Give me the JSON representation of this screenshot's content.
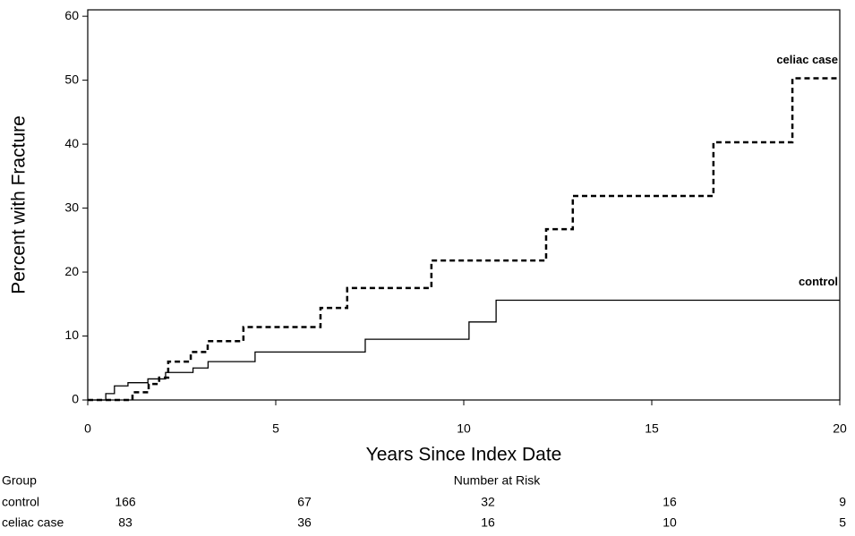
{
  "chart_data": {
    "type": "step",
    "x_label": "Years Since Index Date",
    "y_label": "Percent with Fracture",
    "xlim": [
      0,
      20
    ],
    "xticks": [
      0,
      5,
      10,
      15,
      20
    ],
    "ylim": [
      0,
      61
    ],
    "yticks": [
      0,
      10,
      20,
      30,
      40,
      50,
      60
    ],
    "series": [
      {
        "name": "celiac case",
        "color": "#000000",
        "dashed": true,
        "x": [
          0,
          1.19,
          1.62,
          1.9,
          2.14,
          2.74,
          3.19,
          4.14,
          6.19,
          6.9,
          9.14,
          12.19,
          12.9,
          16.64,
          18.74,
          20
        ],
        "values": [
          0,
          1.2,
          2.5,
          3.5,
          6.0,
          7.5,
          9.2,
          11.4,
          14.4,
          17.5,
          21.8,
          26.7,
          31.9,
          40.3,
          50.3,
          50.3
        ]
      },
      {
        "name": "control",
        "color": "#000000",
        "dashed": false,
        "x": [
          0,
          0.48,
          0.71,
          1.07,
          1.6,
          2.07,
          2.8,
          3.2,
          4.45,
          7.38,
          10.14,
          10.86,
          20
        ],
        "values": [
          0,
          1.0,
          2.2,
          2.7,
          3.3,
          4.3,
          5.0,
          6.0,
          7.5,
          9.5,
          12.2,
          15.6,
          15.6
        ]
      }
    ],
    "risk_table": {
      "group_header": "Group",
      "header": "Number at Risk",
      "rows": [
        {
          "group": "control",
          "counts": [
            166,
            67,
            32,
            16,
            9
          ]
        },
        {
          "group": "celiac case",
          "counts": [
            83,
            36,
            16,
            10,
            5
          ]
        }
      ]
    }
  }
}
